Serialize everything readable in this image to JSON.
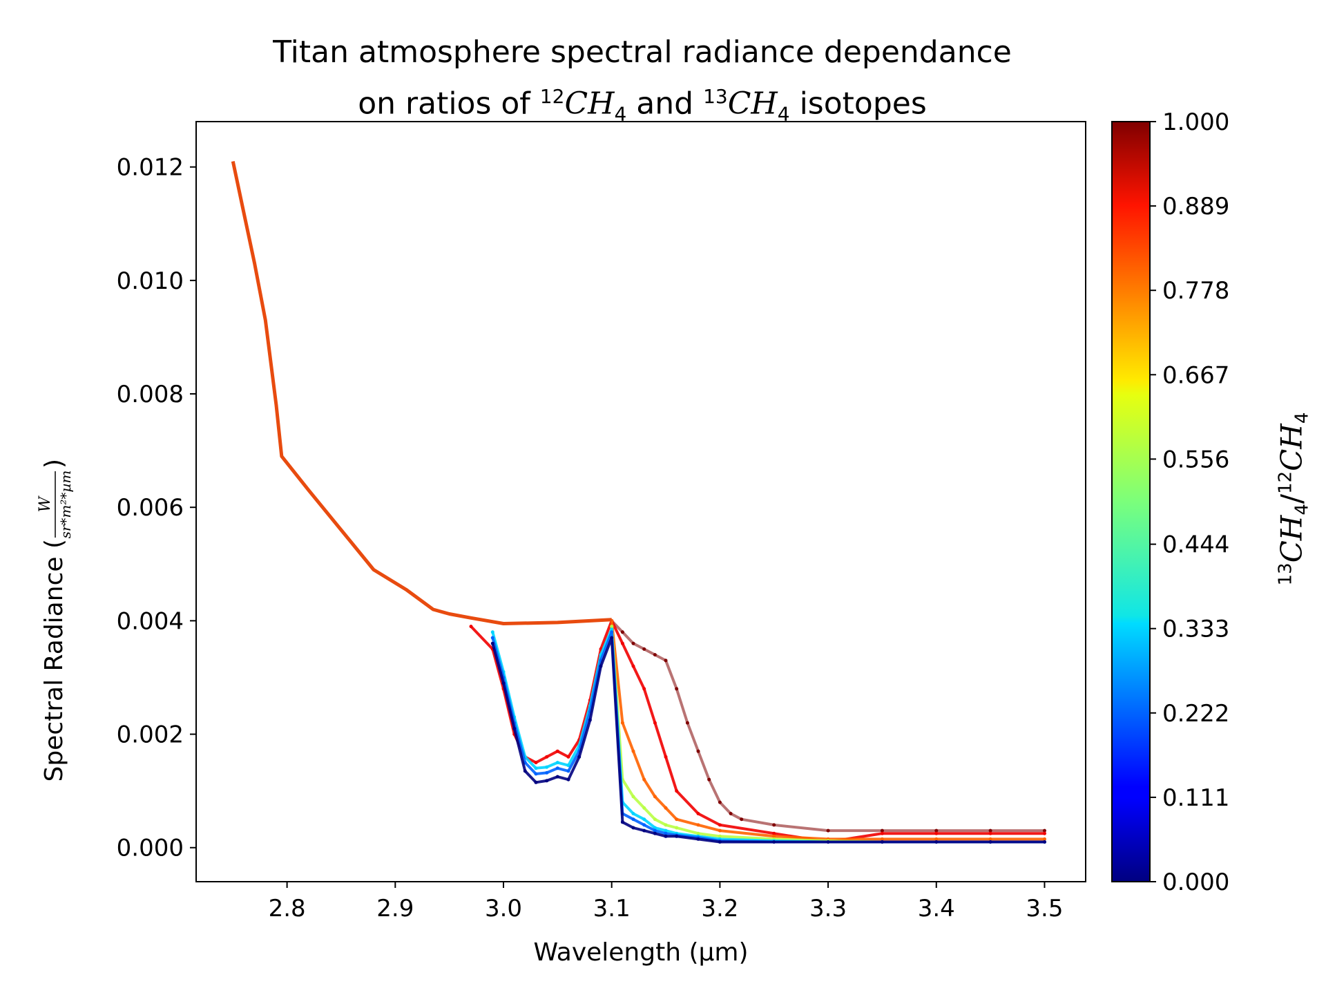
{
  "title": {
    "line1": "Titan atmosphere spectral radiance dependance",
    "line2_prefix": "on ratios of ",
    "iso12_sup": "12",
    "ch": "CH",
    "sub4": "4",
    "and_text": " and ",
    "iso13_sup": "13",
    "suffix": " isotopes"
  },
  "chart_data": {
    "type": "line",
    "title": "Titan atmosphere spectral radiance dependance on ratios of 12CH4 and 13CH4 isotopes",
    "xlabel": "Wavelength (µm)",
    "ylabel": "Spectral Radiance (W / (sr*m^2*µm))",
    "ylabel_prefix": "Spectral Radiance (",
    "ylabel_num": "W",
    "ylabel_den": "sr*m²*µm",
    "ylabel_suffix": ")",
    "xlim": [
      2.716,
      3.538
    ],
    "ylim": [
      -0.0006,
      0.0128
    ],
    "x_ticks": [
      2.8,
      2.9,
      3.0,
      3.1,
      3.2,
      3.3,
      3.4,
      3.5
    ],
    "x_tick_labels": [
      "2.8",
      "2.9",
      "3.0",
      "3.1",
      "3.2",
      "3.3",
      "3.4",
      "3.5"
    ],
    "y_ticks": [
      0.0,
      0.002,
      0.004,
      0.006,
      0.008,
      0.01,
      0.012
    ],
    "y_tick_labels": [
      "0.000",
      "0.002",
      "0.004",
      "0.006",
      "0.008",
      "0.010",
      "0.012"
    ],
    "grid": false,
    "colormap": "jet",
    "colorbar": {
      "label": "13CH4/12CH4",
      "label_parts": {
        "sup_a": "13",
        "ch_a": "CH",
        "sub_a": "4",
        "slash": "/",
        "sup_b": "12",
        "ch_b": "CH",
        "sub_b": "4"
      },
      "range": [
        0.0,
        1.0
      ],
      "ticks": [
        0.0,
        0.111,
        0.222,
        0.333,
        0.444,
        0.556,
        0.667,
        0.778,
        0.889,
        1.0
      ],
      "tick_labels": [
        "0.000",
        "0.111",
        "0.222",
        "0.333",
        "0.444",
        "0.556",
        "0.667",
        "0.778",
        "0.889",
        "1.000"
      ]
    },
    "continuum": {
      "x": [
        2.75,
        2.76,
        2.77,
        2.78,
        2.79,
        2.795,
        2.82,
        2.85,
        2.88,
        2.91,
        2.935,
        2.95,
        2.97,
        3.0,
        3.05,
        3.1
      ],
      "y": [
        0.0121,
        0.0112,
        0.0103,
        0.0093,
        0.0078,
        0.0069,
        0.0063,
        0.0056,
        0.0049,
        0.00455,
        0.0042,
        0.00412,
        0.00405,
        0.00395,
        0.00397,
        0.00402
      ]
    },
    "series": [
      {
        "ratio": 0.0,
        "x": [
          2.99,
          3.0,
          3.01,
          3.02,
          3.03,
          3.04,
          3.05,
          3.06,
          3.07,
          3.08,
          3.09,
          3.1,
          3.11,
          3.12,
          3.13,
          3.14,
          3.15,
          3.16,
          3.18,
          3.2,
          3.25,
          3.3,
          3.35,
          3.4,
          3.45,
          3.5
        ],
        "y": [
          0.0036,
          0.0029,
          0.0021,
          0.00135,
          0.00115,
          0.00118,
          0.00125,
          0.0012,
          0.0016,
          0.00225,
          0.0032,
          0.0037,
          0.00045,
          0.00035,
          0.0003,
          0.00025,
          0.0002,
          0.0002,
          0.00015,
          0.0001,
          0.0001,
          0.0001,
          0.0001,
          0.0001,
          0.0001,
          0.0001
        ]
      },
      {
        "ratio": 0.222,
        "x": [
          2.99,
          3.0,
          3.01,
          3.02,
          3.03,
          3.04,
          3.05,
          3.06,
          3.07,
          3.08,
          3.09,
          3.1,
          3.11,
          3.12,
          3.13,
          3.14,
          3.15,
          3.16,
          3.18,
          3.2,
          3.25,
          3.3,
          3.35,
          3.4,
          3.45,
          3.5
        ],
        "y": [
          0.0037,
          0.003,
          0.0022,
          0.0015,
          0.0013,
          0.00132,
          0.0014,
          0.00135,
          0.0017,
          0.0024,
          0.0033,
          0.0038,
          0.0006,
          0.0005,
          0.0004,
          0.0003,
          0.00025,
          0.00022,
          0.00018,
          0.00012,
          0.0001,
          0.0001,
          0.0001,
          0.0001,
          0.0001,
          0.0001
        ]
      },
      {
        "ratio": 0.333,
        "x": [
          2.99,
          3.0,
          3.01,
          3.02,
          3.03,
          3.04,
          3.05,
          3.06,
          3.07,
          3.08,
          3.09,
          3.1,
          3.11,
          3.12,
          3.13,
          3.14,
          3.15,
          3.16,
          3.18,
          3.2,
          3.25,
          3.3,
          3.35,
          3.4,
          3.45,
          3.5
        ],
        "y": [
          0.0038,
          0.0031,
          0.0023,
          0.0016,
          0.0014,
          0.00142,
          0.0015,
          0.00145,
          0.0018,
          0.0025,
          0.0034,
          0.00385,
          0.0008,
          0.0006,
          0.0005,
          0.00035,
          0.0003,
          0.00025,
          0.0002,
          0.00015,
          0.00012,
          0.0001,
          0.0001,
          0.0001,
          0.0001,
          0.0001
        ]
      },
      {
        "ratio": 0.556,
        "x": [
          3.1,
          3.11,
          3.12,
          3.13,
          3.14,
          3.15,
          3.16,
          3.18,
          3.2,
          3.25,
          3.3,
          3.35,
          3.4,
          3.45,
          3.5
        ],
        "y": [
          0.0039,
          0.0012,
          0.0009,
          0.0007,
          0.0005,
          0.0004,
          0.00035,
          0.00025,
          0.0002,
          0.00015,
          0.00012,
          0.0001,
          0.0001,
          0.0001,
          0.0001
        ]
      },
      {
        "ratio": 0.778,
        "x": [
          3.1,
          3.11,
          3.12,
          3.13,
          3.14,
          3.15,
          3.16,
          3.18,
          3.2,
          3.25,
          3.3,
          3.35,
          3.4,
          3.45,
          3.5
        ],
        "y": [
          0.004,
          0.0022,
          0.0017,
          0.0012,
          0.0009,
          0.0007,
          0.0005,
          0.0004,
          0.0003,
          0.0002,
          0.00015,
          0.00015,
          0.00015,
          0.00015,
          0.00015
        ]
      },
      {
        "ratio": 0.889,
        "x": [
          2.97,
          2.99,
          3.0,
          3.01,
          3.02,
          3.03,
          3.04,
          3.05,
          3.06,
          3.07,
          3.08,
          3.09,
          3.1,
          3.11,
          3.12,
          3.13,
          3.14,
          3.15,
          3.16,
          3.18,
          3.2,
          3.25,
          3.3,
          3.35,
          3.4,
          3.45,
          3.5
        ],
        "y": [
          0.0039,
          0.0035,
          0.0028,
          0.002,
          0.0016,
          0.0015,
          0.0016,
          0.0017,
          0.0016,
          0.0019,
          0.0026,
          0.0035,
          0.004,
          0.0036,
          0.0032,
          0.0028,
          0.0022,
          0.0016,
          0.001,
          0.0006,
          0.0004,
          0.00025,
          0.0001,
          0.00025,
          0.00025,
          0.00025,
          0.00025
        ]
      },
      {
        "ratio": 1.0,
        "x": [
          3.1,
          3.11,
          3.12,
          3.13,
          3.14,
          3.15,
          3.16,
          3.17,
          3.18,
          3.19,
          3.2,
          3.21,
          3.22,
          3.25,
          3.3,
          3.35,
          3.4,
          3.45,
          3.5
        ],
        "y": [
          0.004,
          0.0038,
          0.0036,
          0.0035,
          0.0034,
          0.0033,
          0.0028,
          0.0022,
          0.0017,
          0.0012,
          0.0008,
          0.0006,
          0.0005,
          0.0004,
          0.0003,
          0.0003,
          0.0003,
          0.0003,
          0.0003
        ]
      }
    ]
  }
}
